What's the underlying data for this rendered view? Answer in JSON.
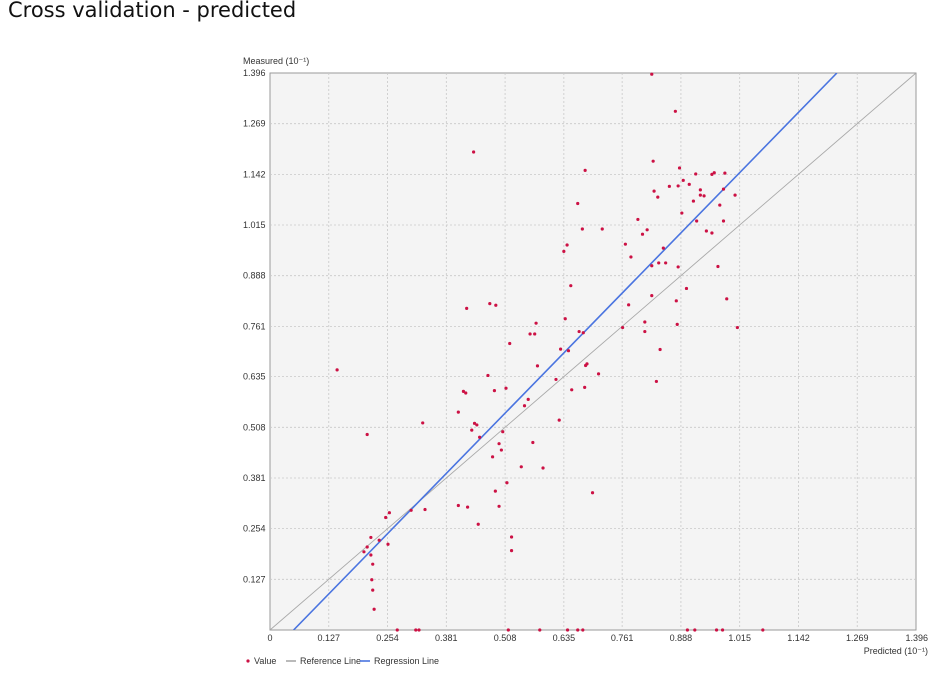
{
  "page_title": "Cross validation - predicted",
  "chart_data": {
    "type": "scatter",
    "title": "Cross validation - predicted",
    "xlabel": "Predicted (10⁻¹)",
    "ylabel": "Measured (10⁻¹)",
    "xlim": [
      0,
      1.396
    ],
    "ylim": [
      0,
      1.396
    ],
    "x_ticks": [
      "0",
      "0.127",
      "0.254",
      "0.381",
      "0.508",
      "0.635",
      "0.761",
      "0.888",
      "1.015",
      "1.142",
      "1.269",
      "1.396"
    ],
    "y_ticks": [
      "0.127",
      "0.254",
      "0.381",
      "0.508",
      "0.635",
      "0.761",
      "0.888",
      "1.015",
      "1.142",
      "1.269",
      "1.396"
    ],
    "x_tick_values": [
      0,
      0.127,
      0.254,
      0.381,
      0.508,
      0.635,
      0.761,
      0.888,
      1.015,
      1.142,
      1.269,
      1.396
    ],
    "y_tick_values": [
      0.127,
      0.254,
      0.381,
      0.508,
      0.635,
      0.761,
      0.888,
      1.015,
      1.142,
      1.269,
      1.396
    ],
    "grid": true,
    "legend_position": "bottom-left",
    "colors": {
      "value": "#cc1144",
      "reference": "#a8a8a8",
      "regression": "#4a74e0",
      "grid": "#c8c8c8",
      "plot_bg": "#f4f4f4",
      "frame": "#9a9a9a"
    },
    "series": [
      {
        "name": "Value",
        "kind": "points",
        "points": [
          [
            0.145,
            0.652
          ],
          [
            0.21,
            0.49
          ],
          [
            0.203,
            0.196
          ],
          [
            0.21,
            0.208
          ],
          [
            0.218,
            0.188
          ],
          [
            0.218,
            0.232
          ],
          [
            0.222,
            0.165
          ],
          [
            0.22,
            0.126
          ],
          [
            0.222,
            0.1
          ],
          [
            0.225,
            0.052
          ],
          [
            0.236,
            0.225
          ],
          [
            0.25,
            0.282
          ],
          [
            0.255,
            0.215
          ],
          [
            0.258,
            0.294
          ],
          [
            0.275,
            0.0
          ],
          [
            0.305,
            0.3
          ],
          [
            0.315,
            0.0
          ],
          [
            0.322,
            0.0
          ],
          [
            0.33,
            0.519
          ],
          [
            0.335,
            0.302
          ],
          [
            0.407,
            0.546
          ],
          [
            0.407,
            0.312
          ],
          [
            0.418,
            0.598
          ],
          [
            0.423,
            0.594
          ],
          [
            0.425,
            0.806
          ],
          [
            0.427,
            0.308
          ],
          [
            0.436,
            0.501
          ],
          [
            0.44,
            1.198
          ],
          [
            0.442,
            0.518
          ],
          [
            0.447,
            0.514
          ],
          [
            0.45,
            0.265
          ],
          [
            0.453,
            0.483
          ],
          [
            0.471,
            0.638
          ],
          [
            0.475,
            0.818
          ],
          [
            0.481,
            0.434
          ],
          [
            0.488,
            0.814
          ],
          [
            0.485,
            0.6
          ],
          [
            0.487,
            0.348
          ],
          [
            0.495,
            0.31
          ],
          [
            0.495,
            0.467
          ],
          [
            0.5,
            0.451
          ],
          [
            0.503,
            0.497
          ],
          [
            0.51,
            0.606
          ],
          [
            0.512,
            0.369
          ],
          [
            0.515,
            0.0
          ],
          [
            0.518,
            0.718
          ],
          [
            0.522,
            0.233
          ],
          [
            0.522,
            0.199
          ],
          [
            0.543,
            0.409
          ],
          [
            0.55,
            0.562
          ],
          [
            0.558,
            0.578
          ],
          [
            0.562,
            0.742
          ],
          [
            0.568,
            0.47
          ],
          [
            0.572,
            0.742
          ],
          [
            0.575,
            0.769
          ],
          [
            0.578,
            0.662
          ],
          [
            0.583,
            0.0
          ],
          [
            0.59,
            0.406
          ],
          [
            0.618,
            0.628
          ],
          [
            0.625,
            0.526
          ],
          [
            0.628,
            0.704
          ],
          [
            0.635,
            0.949
          ],
          [
            0.638,
            0.78
          ],
          [
            0.642,
            0.965
          ],
          [
            0.645,
            0.7
          ],
          [
            0.643,
            0.0
          ],
          [
            0.65,
            0.863
          ],
          [
            0.652,
            0.602
          ],
          [
            0.665,
            1.069
          ],
          [
            0.665,
            0.0
          ],
          [
            0.668,
            0.748
          ],
          [
            0.675,
            1.005
          ],
          [
            0.677,
            0.745
          ],
          [
            0.676,
            0.0
          ],
          [
            0.68,
            0.608
          ],
          [
            0.682,
            0.663
          ],
          [
            0.681,
            1.152
          ],
          [
            0.685,
            0.667
          ],
          [
            0.697,
            0.344
          ],
          [
            0.71,
            0.642
          ],
          [
            0.718,
            1.005
          ],
          [
            0.762,
            0.758
          ],
          [
            0.768,
            0.967
          ],
          [
            0.775,
            0.815
          ],
          [
            0.78,
            0.935
          ],
          [
            0.795,
            1.029
          ],
          [
            0.805,
            0.992
          ],
          [
            0.81,
            0.772
          ],
          [
            0.81,
            0.748
          ],
          [
            0.815,
            1.003
          ],
          [
            0.825,
            1.393
          ],
          [
            0.825,
            0.913
          ],
          [
            0.825,
            0.838
          ],
          [
            0.828,
            1.175
          ],
          [
            0.83,
            1.1
          ],
          [
            0.835,
            0.623
          ],
          [
            0.838,
            1.085
          ],
          [
            0.84,
            0.92
          ],
          [
            0.843,
            0.703
          ],
          [
            0.85,
            0.957
          ],
          [
            0.855,
            0.92
          ],
          [
            0.863,
            1.112
          ],
          [
            0.876,
            1.3
          ],
          [
            0.878,
            0.825
          ],
          [
            0.88,
            0.766
          ],
          [
            0.882,
            1.113
          ],
          [
            0.882,
            0.91
          ],
          [
            0.885,
            1.158
          ],
          [
            0.89,
            1.045
          ],
          [
            0.893,
            1.127
          ],
          [
            0.9,
            0.856
          ],
          [
            0.902,
            0.0
          ],
          [
            0.906,
            1.117
          ],
          [
            0.915,
            1.075
          ],
          [
            0.918,
            0.0
          ],
          [
            0.92,
            1.143
          ],
          [
            0.922,
            1.025
          ],
          [
            0.93,
            1.103
          ],
          [
            0.93,
            1.09
          ],
          [
            0.938,
            1.088
          ],
          [
            0.943,
            1.0
          ],
          [
            0.955,
            0.995
          ],
          [
            0.955,
            1.142
          ],
          [
            0.96,
            1.146
          ],
          [
            0.965,
            0.0
          ],
          [
            0.968,
            0.911
          ],
          [
            0.972,
            1.065
          ],
          [
            0.978,
            0.0
          ],
          [
            0.98,
            1.105
          ],
          [
            0.98,
            1.025
          ],
          [
            0.983,
            1.145
          ],
          [
            0.987,
            0.83
          ],
          [
            1.005,
            1.09
          ],
          [
            1.01,
            0.758
          ],
          [
            1.065,
            0.0
          ]
        ]
      },
      {
        "name": "Reference Line",
        "kind": "line",
        "points": [
          [
            0,
            0
          ],
          [
            1.396,
            1.396
          ]
        ]
      },
      {
        "name": "Regression Line",
        "kind": "line",
        "points": [
          [
            0.051,
            0
          ],
          [
            1.225,
            1.396
          ]
        ]
      }
    ]
  }
}
